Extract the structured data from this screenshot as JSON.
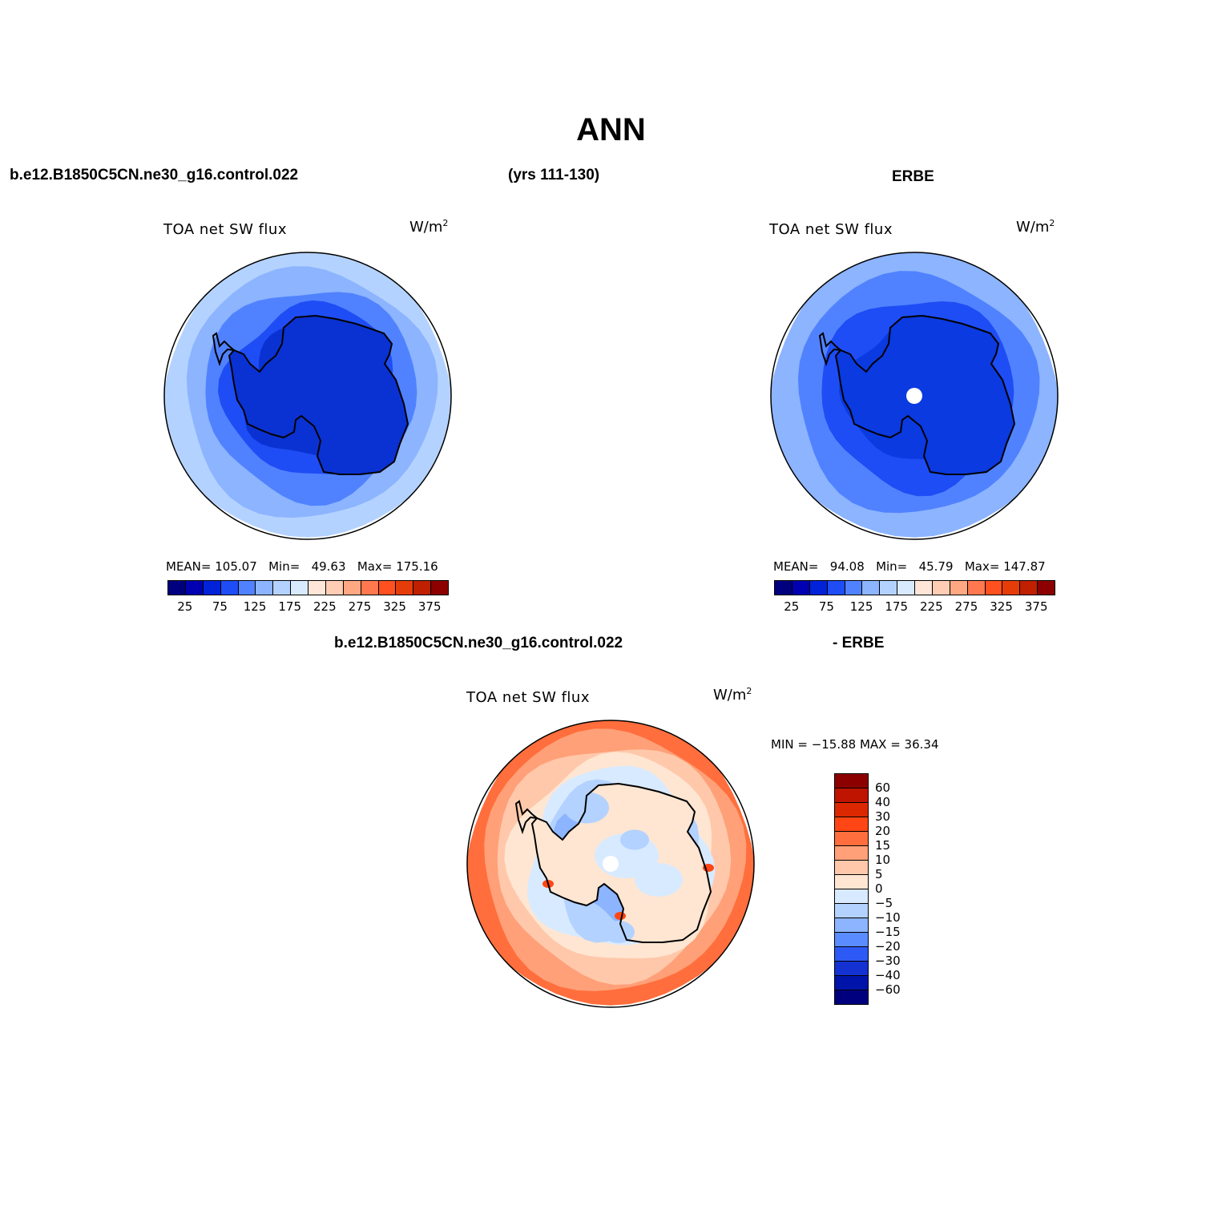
{
  "figure": {
    "title": "ANN",
    "case_name": "b.e12.B1850C5CN.ne30_g16.control.022",
    "years": "(yrs 111-130)",
    "obs_name": "ERBE",
    "diff_case_name": "b.e12.B1850C5CN.ne30_g16.control.022",
    "diff_obs_name": "- ERBE"
  },
  "panels": [
    {
      "title": "TOA net SW flux",
      "units": "W/m",
      "units_sup": "2",
      "stats": {
        "mean_label": "MEAN=",
        "mean": "105.07",
        "min_label": "Min=",
        "min": "49.63",
        "max_label": "Max=",
        "max": "175.16"
      }
    },
    {
      "title": "TOA net SW flux",
      "units": "W/m",
      "units_sup": "2",
      "stats": {
        "mean_label": "MEAN=",
        "mean": "94.08",
        "min_label": "Min=",
        "min": "45.79",
        "max_label": "Max=",
        "max": "147.87"
      }
    },
    {
      "title": "TOA net SW flux",
      "units": "W/m",
      "units_sup": "2",
      "minmax": "MIN = −15.88 MAX =  36.34"
    }
  ],
  "colorbar_horizontal": {
    "colors": [
      "#00007F",
      "#0000B2",
      "#0022D8",
      "#1E4DF5",
      "#5082FF",
      "#8CB4FF",
      "#B4D2FF",
      "#D8EAFF",
      "#FFE6D8",
      "#FFCCB4",
      "#FFA882",
      "#FF7850",
      "#FF5020",
      "#E63C0A",
      "#BE2000",
      "#8C0000"
    ],
    "ticks": [
      "25",
      "75",
      "125",
      "175",
      "225",
      "275",
      "325",
      "375"
    ]
  },
  "colorbar_vertical": {
    "colors": [
      "#8C0000",
      "#BE1400",
      "#DC2800",
      "#FF4614",
      "#FF6E3C",
      "#FFA078",
      "#FFC8AA",
      "#FFE6D2",
      "#D8EAFF",
      "#B4D2FF",
      "#8CB4FF",
      "#5A8CFF",
      "#2D5AF5",
      "#1432D2",
      "#0014AA",
      "#00007F"
    ],
    "ticks": [
      "60",
      "40",
      "30",
      "20",
      "15",
      "10",
      "5",
      "0",
      "−5",
      "−10",
      "−15",
      "−20",
      "−30",
      "−40",
      "−60"
    ]
  },
  "map_colors": {
    "model": [
      "#B4D2FF",
      "#8CB4FF",
      "#5082FF",
      "#1E4DF5",
      "#0A32D2"
    ],
    "obs": [
      "#8CB4FF",
      "#5082FF",
      "#1E4DF5",
      "#0A3AE0"
    ],
    "diff": [
      "#FF6E3C",
      "#FFA078",
      "#FFC8AA",
      "#FFE6D2",
      "#D8EAFF",
      "#B4D2FF",
      "#8CB4FF"
    ]
  }
}
